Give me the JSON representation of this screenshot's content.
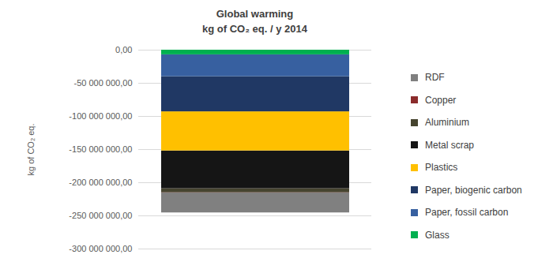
{
  "chart_data": {
    "type": "bar",
    "title": "Global warming",
    "subtitle": "kg of CO₂ eq. / y 2014",
    "y_label": "kg of CO₂ eq.",
    "categories": [
      null
    ],
    "stacked": true,
    "grid": true,
    "legend": "right",
    "tick_labels": "y",
    "ylim": [
      -300000000,
      0
    ],
    "yticks": [
      {
        "value": -300000000,
        "label": "-300 000 000,00"
      },
      {
        "value": -250000000,
        "label": "-250 000 000,00"
      },
      {
        "value": -200000000,
        "label": "-200 000 000,00"
      },
      {
        "value": -150000000,
        "label": "-150 000 000,00"
      },
      {
        "value": -100000000,
        "label": "-100 000 000,00"
      },
      {
        "value": -50000000,
        "label": "-50 000 000,00"
      },
      {
        "value": 0,
        "label": "0,00"
      }
    ],
    "series": [
      {
        "name": "RDF",
        "color": "#808080",
        "values": [
          -30000000
        ]
      },
      {
        "name": "Copper",
        "color": "#8b2c2c",
        "values": [
          -500000
        ]
      },
      {
        "name": "Aluminium",
        "color": "#46442f",
        "values": [
          -6000000
        ]
      },
      {
        "name": "Metal scrap",
        "color": "#151515",
        "values": [
          -57000000
        ]
      },
      {
        "name": "Plastics",
        "color": "#ffc000",
        "values": [
          -59000000
        ]
      },
      {
        "name": "Paper, biogenic carbon",
        "color": "#203864",
        "values": [
          -53000000
        ]
      },
      {
        "name": "Paper, fossil carbon",
        "color": "#3760a0",
        "values": [
          -33000000
        ]
      },
      {
        "name": "Glass",
        "color": "#00b050",
        "values": [
          -7000000
        ]
      }
    ]
  }
}
